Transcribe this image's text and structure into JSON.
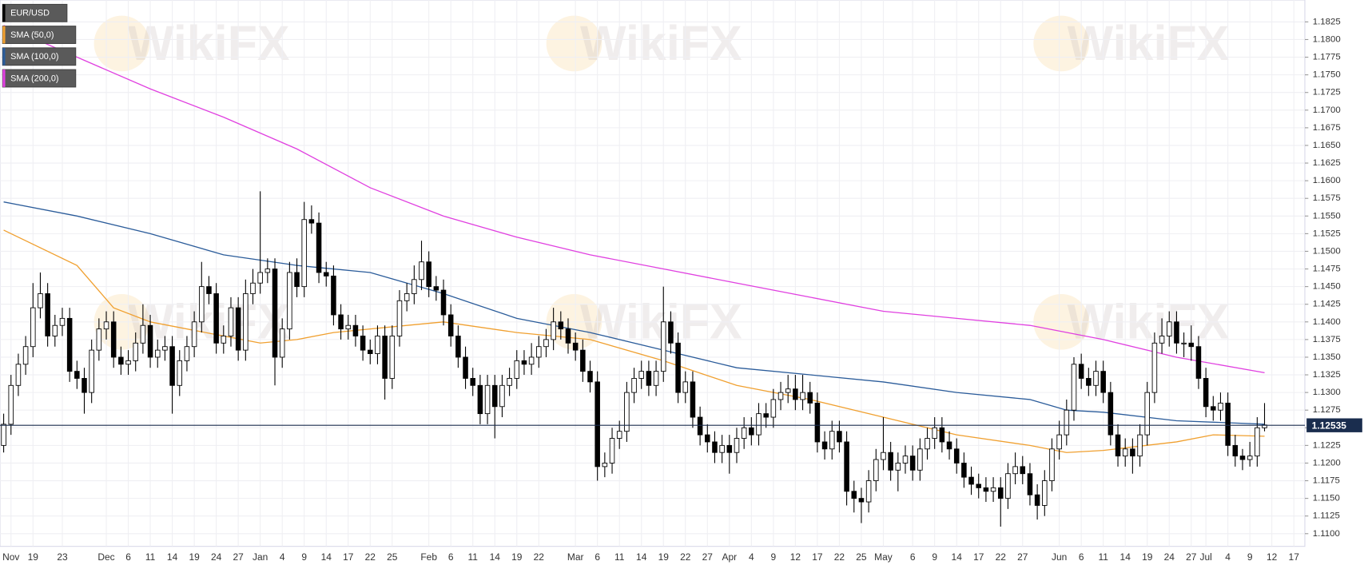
{
  "chart_data": {
    "type": "candlestick",
    "watermark": "WikiFX",
    "categories": [
      null,
      "Nov",
      null,
      null,
      "19",
      null,
      null,
      null,
      "23",
      null,
      null,
      null,
      null,
      null,
      "Dec",
      null,
      null,
      "6",
      null,
      null,
      "11",
      null,
      null,
      "14",
      null,
      null,
      "19",
      null,
      null,
      "24",
      null,
      null,
      "27",
      null,
      null,
      "Jan",
      null,
      null,
      "4",
      null,
      null,
      "9",
      null,
      null,
      "14",
      null,
      null,
      "17",
      null,
      null,
      "22",
      null,
      null,
      "25",
      null,
      null,
      null,
      null,
      "Feb",
      null,
      null,
      "6",
      null,
      null,
      "11",
      null,
      null,
      "14",
      null,
      null,
      "19",
      null,
      null,
      "22",
      null,
      null,
      null,
      null,
      "Mar",
      null,
      null,
      "6",
      null,
      null,
      "11",
      null,
      null,
      "14",
      null,
      null,
      "19",
      null,
      null,
      "22",
      null,
      null,
      "27",
      null,
      null,
      "Apr",
      null,
      null,
      "4",
      null,
      null,
      "9",
      null,
      null,
      "12",
      null,
      null,
      "17",
      null,
      null,
      "22",
      null,
      null,
      "25",
      null,
      null,
      "May",
      null,
      null,
      null,
      "6",
      null,
      null,
      "9",
      null,
      null,
      "14",
      null,
      null,
      "17",
      null,
      null,
      "22",
      null,
      null,
      "27",
      null,
      null,
      null,
      null,
      "Jun",
      null,
      null,
      "6",
      null,
      null,
      "11",
      null,
      null,
      "14",
      null,
      null,
      "19",
      null,
      null,
      "24",
      null,
      null,
      "27",
      null,
      "Jul",
      null,
      null,
      "4",
      null,
      null,
      "9",
      null,
      null,
      "12",
      null,
      null,
      "17",
      null
    ],
    "series": [
      {
        "name": "EUR/USD",
        "color": "#000000",
        "open": [
          1.1225,
          1.1255,
          1.131,
          1.134,
          1.1365,
          1.142,
          1.144,
          1.138,
          1.1395,
          1.1405,
          1.133,
          1.132,
          1.13,
          1.136,
          1.139,
          1.14,
          1.135,
          1.134,
          1.1345,
          1.137,
          1.1395,
          1.135,
          1.136,
          1.1365,
          1.131,
          1.1345,
          1.1365,
          1.14,
          1.145,
          1.144,
          1.137,
          1.138,
          1.142,
          1.136,
          1.144,
          1.1455,
          1.147,
          1.1475,
          1.135,
          1.139,
          1.147,
          1.145,
          1.1545,
          1.154,
          1.147,
          1.1465,
          1.141,
          1.139,
          1.1395,
          1.138,
          1.136,
          1.1355,
          1.138,
          1.132,
          1.138,
          1.143,
          1.144,
          1.146,
          1.1485,
          1.145,
          1.1445,
          1.141,
          1.138,
          1.135,
          1.132,
          1.131,
          1.127,
          1.131,
          1.128,
          1.131,
          1.132,
          1.1345,
          1.134,
          1.135,
          1.1365,
          1.1375,
          1.14,
          1.139,
          1.137,
          1.136,
          1.133,
          1.1315,
          1.1195,
          1.12,
          1.1235,
          1.1245,
          1.13,
          1.132,
          1.133,
          1.131,
          1.133,
          1.14,
          1.137,
          1.13,
          1.1315,
          1.1265,
          1.124,
          1.123,
          1.1215,
          1.1225,
          1.1215,
          1.1235,
          1.125,
          1.124,
          1.127,
          1.1265,
          1.129,
          1.13,
          1.1305,
          1.129,
          1.13,
          1.1285,
          1.123,
          1.122,
          1.1245,
          1.123,
          1.116,
          1.115,
          1.1145,
          1.1175,
          1.1205,
          1.1215,
          1.119,
          1.12,
          1.121,
          1.119,
          1.122,
          1.1235,
          1.125,
          1.123,
          1.122,
          1.12,
          1.118,
          1.117,
          1.1165,
          1.116,
          1.1165,
          1.115,
          1.1185,
          1.1195,
          1.1185,
          1.1155,
          1.114,
          1.1175,
          1.122,
          1.124,
          1.1275,
          1.134,
          1.132,
          1.131,
          1.133,
          1.13,
          1.124,
          1.121,
          1.122,
          1.121,
          1.124,
          1.13,
          1.137,
          1.138,
          1.14,
          1.137,
          1.137,
          1.1365,
          1.132,
          1.128,
          1.1275,
          1.1285,
          1.1225,
          1.121,
          1.1205,
          1.121,
          1.125,
          null,
          null,
          null,
          null,
          null
        ],
        "high": [
          1.127,
          1.1325,
          1.1355,
          1.138,
          1.1455,
          1.147,
          1.1455,
          1.141,
          1.142,
          1.142,
          1.1345,
          1.1335,
          1.1375,
          1.1405,
          1.1415,
          1.1415,
          1.1365,
          1.136,
          1.1385,
          1.1425,
          1.141,
          1.1375,
          1.138,
          1.138,
          1.136,
          1.138,
          1.1415,
          1.1485,
          1.1465,
          1.1455,
          1.1395,
          1.1435,
          1.1435,
          1.146,
          1.1475,
          1.1585,
          1.149,
          1.149,
          1.1405,
          1.1485,
          1.149,
          1.157,
          1.1565,
          1.1555,
          1.1485,
          1.148,
          1.1425,
          1.141,
          1.141,
          1.1395,
          1.1375,
          1.1395,
          1.1395,
          1.1395,
          1.1445,
          1.1455,
          1.148,
          1.1515,
          1.15,
          1.1465,
          1.146,
          1.1425,
          1.1395,
          1.1365,
          1.1335,
          1.1325,
          1.1325,
          1.1325,
          1.1325,
          1.1335,
          1.136,
          1.136,
          1.137,
          1.138,
          1.139,
          1.142,
          1.1415,
          1.1405,
          1.1385,
          1.1375,
          1.1345,
          1.133,
          1.1215,
          1.125,
          1.126,
          1.1315,
          1.1335,
          1.1345,
          1.1345,
          1.1345,
          1.145,
          1.1415,
          1.1385,
          1.133,
          1.133,
          1.128,
          1.1255,
          1.1245,
          1.124,
          1.124,
          1.125,
          1.1265,
          1.1265,
          1.1285,
          1.1285,
          1.1305,
          1.1315,
          1.1325,
          1.1325,
          1.1325,
          1.1315,
          1.13,
          1.1245,
          1.126,
          1.126,
          1.1245,
          1.1175,
          1.1165,
          1.119,
          1.122,
          1.1265,
          1.123,
          1.1215,
          1.1225,
          1.1225,
          1.1235,
          1.125,
          1.1265,
          1.1265,
          1.1245,
          1.1235,
          1.1215,
          1.1195,
          1.1185,
          1.118,
          1.118,
          1.118,
          1.12,
          1.1215,
          1.121,
          1.12,
          1.117,
          1.119,
          1.1235,
          1.126,
          1.129,
          1.135,
          1.1355,
          1.1335,
          1.1345,
          1.1345,
          1.1315,
          1.1255,
          1.1235,
          1.1235,
          1.1255,
          1.1315,
          1.1385,
          1.1405,
          1.1415,
          1.1415,
          1.1385,
          1.1395,
          1.138,
          1.1335,
          1.1295,
          1.13,
          1.13,
          1.124,
          1.122,
          1.123,
          1.1265,
          1.1285,
          null,
          null,
          null,
          null,
          null
        ],
        "low": [
          1.1215,
          1.124,
          1.1295,
          1.1325,
          1.135,
          1.1405,
          1.1365,
          1.1365,
          1.138,
          1.1315,
          1.1305,
          1.127,
          1.1285,
          1.1345,
          1.1375,
          1.1335,
          1.1325,
          1.1325,
          1.133,
          1.1355,
          1.1335,
          1.1335,
          1.1345,
          1.127,
          1.1295,
          1.133,
          1.135,
          1.1385,
          1.1425,
          1.1355,
          1.1355,
          1.1365,
          1.1345,
          1.1345,
          1.1425,
          1.144,
          1.1455,
          1.131,
          1.1335,
          1.1375,
          1.1435,
          1.1435,
          1.1525,
          1.1455,
          1.145,
          1.1395,
          1.1375,
          1.1375,
          1.1365,
          1.1345,
          1.134,
          1.134,
          1.129,
          1.1305,
          1.1365,
          1.1415,
          1.1425,
          1.1445,
          1.1435,
          1.143,
          1.1395,
          1.1365,
          1.1335,
          1.1305,
          1.1295,
          1.1255,
          1.1255,
          1.1235,
          1.1265,
          1.1295,
          1.1305,
          1.1325,
          1.1325,
          1.1335,
          1.135,
          1.136,
          1.1375,
          1.1355,
          1.1345,
          1.1315,
          1.13,
          1.1175,
          1.118,
          1.1185,
          1.122,
          1.123,
          1.1285,
          1.1305,
          1.1295,
          1.1295,
          1.1315,
          1.1355,
          1.1285,
          1.1285,
          1.125,
          1.1225,
          1.1215,
          1.12,
          1.12,
          1.1185,
          1.12,
          1.122,
          1.1225,
          1.1225,
          1.125,
          1.125,
          1.1275,
          1.1285,
          1.1275,
          1.1275,
          1.127,
          1.1215,
          1.1205,
          1.1205,
          1.1215,
          1.114,
          1.113,
          1.1115,
          1.113,
          1.116,
          1.119,
          1.1175,
          1.116,
          1.1185,
          1.1175,
          1.1175,
          1.1205,
          1.122,
          1.1215,
          1.1205,
          1.1185,
          1.1165,
          1.1155,
          1.115,
          1.1145,
          1.1145,
          1.111,
          1.1135,
          1.117,
          1.117,
          1.114,
          1.112,
          1.1125,
          1.116,
          1.1205,
          1.1225,
          1.126,
          1.1305,
          1.1295,
          1.1295,
          1.1285,
          1.1225,
          1.1195,
          1.1195,
          1.1185,
          1.1195,
          1.1225,
          1.1285,
          1.1355,
          1.1365,
          1.1355,
          1.135,
          1.1345,
          1.1305,
          1.1265,
          1.126,
          1.126,
          1.121,
          1.1195,
          1.119,
          1.1195,
          1.1195,
          1.1245,
          null,
          null,
          null,
          null,
          null
        ],
        "close": [
          1.1255,
          1.131,
          1.134,
          1.1365,
          1.142,
          1.144,
          1.138,
          1.1395,
          1.1405,
          1.133,
          1.132,
          1.13,
          1.136,
          1.139,
          1.14,
          1.135,
          1.134,
          1.1345,
          1.137,
          1.1395,
          1.135,
          1.136,
          1.1365,
          1.131,
          1.1345,
          1.1365,
          1.14,
          1.145,
          1.144,
          1.137,
          1.138,
          1.142,
          1.136,
          1.144,
          1.1455,
          1.147,
          1.1475,
          1.135,
          1.139,
          1.147,
          1.145,
          1.1545,
          1.154,
          1.147,
          1.1465,
          1.141,
          1.139,
          1.1395,
          1.138,
          1.136,
          1.1355,
          1.138,
          1.132,
          1.138,
          1.143,
          1.144,
          1.146,
          1.1485,
          1.145,
          1.1445,
          1.141,
          1.138,
          1.135,
          1.132,
          1.131,
          1.127,
          1.131,
          1.128,
          1.131,
          1.132,
          1.1345,
          1.134,
          1.135,
          1.1365,
          1.1375,
          1.14,
          1.139,
          1.137,
          1.136,
          1.133,
          1.1315,
          1.1195,
          1.12,
          1.1235,
          1.1245,
          1.13,
          1.132,
          1.133,
          1.131,
          1.133,
          1.14,
          1.137,
          1.13,
          1.1315,
          1.1265,
          1.124,
          1.123,
          1.1215,
          1.1225,
          1.1215,
          1.1235,
          1.125,
          1.124,
          1.127,
          1.1265,
          1.129,
          1.13,
          1.1305,
          1.129,
          1.13,
          1.1285,
          1.123,
          1.122,
          1.1245,
          1.123,
          1.116,
          1.115,
          1.1145,
          1.1175,
          1.1205,
          1.1215,
          1.119,
          1.12,
          1.121,
          1.119,
          1.122,
          1.1235,
          1.125,
          1.123,
          1.122,
          1.12,
          1.118,
          1.117,
          1.1165,
          1.116,
          1.1165,
          1.115,
          1.1185,
          1.1195,
          1.1185,
          1.1155,
          1.114,
          1.1175,
          1.122,
          1.124,
          1.1275,
          1.134,
          1.132,
          1.131,
          1.133,
          1.13,
          1.124,
          1.121,
          1.122,
          1.121,
          1.124,
          1.13,
          1.137,
          1.138,
          1.14,
          1.137,
          1.137,
          1.1365,
          1.132,
          1.128,
          1.1275,
          1.1285,
          1.1225,
          1.121,
          1.1205,
          1.121,
          1.125,
          1.1254,
          null,
          null,
          null,
          null,
          null
        ]
      },
      {
        "name": "SMA (50,0)",
        "color": "#f0a030",
        "x": [
          0,
          10,
          15,
          20,
          30,
          35,
          40,
          45,
          55,
          60,
          70,
          80,
          90,
          100,
          110,
          120,
          130,
          140,
          145,
          150,
          160,
          165,
          172
        ],
        "values": [
          1.153,
          1.148,
          1.142,
          1.14,
          1.138,
          1.137,
          1.1375,
          1.1385,
          1.1395,
          1.14,
          1.1385,
          1.1375,
          1.1345,
          1.131,
          1.129,
          1.1265,
          1.124,
          1.1225,
          1.1215,
          1.1218,
          1.123,
          1.124,
          1.1238
        ]
      },
      {
        "name": "SMA (100,0)",
        "color": "#2b5c9a",
        "x": [
          0,
          10,
          20,
          30,
          40,
          50,
          60,
          70,
          80,
          90,
          100,
          110,
          120,
          130,
          140,
          145,
          150,
          160,
          172
        ],
        "values": [
          1.157,
          1.155,
          1.1525,
          1.1495,
          1.148,
          1.147,
          1.144,
          1.1405,
          1.1385,
          1.136,
          1.1335,
          1.1325,
          1.1315,
          1.13,
          1.129,
          1.1275,
          1.1272,
          1.126,
          1.1255
        ]
      },
      {
        "name": "SMA (200,0)",
        "color": "#e040e0",
        "x": [
          0,
          10,
          20,
          30,
          40,
          50,
          60,
          70,
          80,
          90,
          100,
          110,
          120,
          130,
          140,
          150,
          160,
          172
        ],
        "values": [
          1.182,
          1.1775,
          1.173,
          1.169,
          1.1645,
          1.159,
          1.155,
          1.152,
          1.1495,
          1.1475,
          1.1455,
          1.1435,
          1.1415,
          1.1405,
          1.1395,
          1.1375,
          1.135,
          1.1328
        ]
      }
    ],
    "current_price": 1.12535,
    "current_price_color": "#1a2d4e",
    "ylim": [
      1.1082,
      1.1856
    ],
    "yticks": [
      {
        "value": 1.11,
        "label": "1.1100"
      },
      1.1125,
      {
        "value": 1.115,
        "label": "1.1150"
      },
      1.1175,
      {
        "value": 1.12,
        "label": "1.1200"
      },
      1.1225,
      {
        "value": 1.125,
        "label": "1.1250"
      },
      1.1275,
      {
        "value": 1.13,
        "label": "1.1300"
      },
      1.1325,
      {
        "value": 1.135,
        "label": "1.1350"
      },
      1.1375,
      {
        "value": 1.14,
        "label": "1.1400"
      },
      1.1425,
      {
        "value": 1.145,
        "label": "1.1450"
      },
      1.1475,
      {
        "value": 1.15,
        "label": "1.1500"
      },
      1.1525,
      {
        "value": 1.155,
        "label": "1.1550"
      },
      1.1575,
      {
        "value": 1.16,
        "label": "1.1600"
      },
      1.1625,
      {
        "value": 1.165,
        "label": "1.1650"
      },
      1.1675,
      {
        "value": 1.17,
        "label": "1.1700"
      },
      1.1725,
      {
        "value": 1.175,
        "label": "1.1750"
      },
      1.1775,
      {
        "value": 1.18,
        "label": "1.1800"
      },
      1.1825
    ],
    "grid": true,
    "legend": "top-left"
  }
}
